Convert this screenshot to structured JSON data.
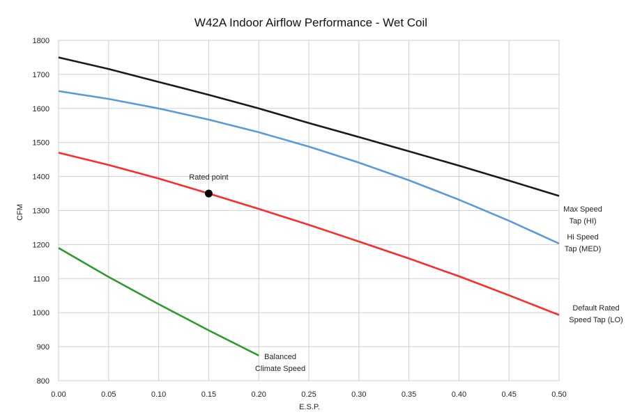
{
  "chart_data": {
    "type": "line",
    "title": "W42A   Indoor Airflow Performance - Wet Coil",
    "xlabel": "E.S.P.",
    "ylabel": "CFM",
    "xlim": [
      0,
      0.5
    ],
    "ylim": [
      800,
      1800
    ],
    "x_ticks": [
      "0.00",
      "0.05",
      "0.10",
      "0.15",
      "0.20",
      "0.25",
      "0.30",
      "0.35",
      "0.40",
      "0.45",
      "0.50"
    ],
    "y_ticks": [
      "800",
      "900",
      "1000",
      "1100",
      "1200",
      "1300",
      "1400",
      "1500",
      "1600",
      "1700",
      "1800"
    ],
    "grid": true,
    "series": [
      {
        "color": "#1a1a1a",
        "label_lines": [
          "Max Speed",
          "Tap (HI)"
        ],
        "points": [
          [
            0,
            1750
          ],
          [
            0.05,
            1716
          ],
          [
            0.1,
            1678
          ],
          [
            0.15,
            1640
          ],
          [
            0.2,
            1600
          ],
          [
            0.25,
            1557
          ],
          [
            0.3,
            1516
          ],
          [
            0.35,
            1474
          ],
          [
            0.4,
            1432
          ],
          [
            0.45,
            1388
          ],
          [
            0.5,
            1343
          ]
        ]
      },
      {
        "color": "#5b9bd5",
        "label_lines": [
          "Hi Speed",
          "Tap (MED)"
        ],
        "points": [
          [
            0,
            1651
          ],
          [
            0.05,
            1628
          ],
          [
            0.1,
            1600
          ],
          [
            0.15,
            1567
          ],
          [
            0.2,
            1530
          ],
          [
            0.25,
            1488
          ],
          [
            0.3,
            1441
          ],
          [
            0.35,
            1389
          ],
          [
            0.4,
            1332
          ],
          [
            0.45,
            1270
          ],
          [
            0.5,
            1203
          ]
        ]
      },
      {
        "color": "#ff2a2a",
        "label_lines": [
          "Default Rated",
          "Speed Tap (LO)"
        ],
        "points": [
          [
            0,
            1470
          ],
          [
            0.05,
            1434
          ],
          [
            0.1,
            1394
          ],
          [
            0.15,
            1350
          ],
          [
            0.2,
            1305
          ],
          [
            0.25,
            1258
          ],
          [
            0.3,
            1209
          ],
          [
            0.35,
            1159
          ],
          [
            0.4,
            1107
          ],
          [
            0.45,
            1051
          ],
          [
            0.5,
            993
          ]
        ]
      },
      {
        "color": "#2e9a2e",
        "label_lines": [
          "Balanced",
          "Climate Speed"
        ],
        "points": [
          [
            0,
            1190
          ],
          [
            0.05,
            1105
          ],
          [
            0.1,
            1025
          ],
          [
            0.15,
            948
          ],
          [
            0.2,
            874
          ]
        ]
      }
    ],
    "annotation": {
      "text": "Rated point",
      "x": 0.15,
      "y": 1350
    }
  }
}
